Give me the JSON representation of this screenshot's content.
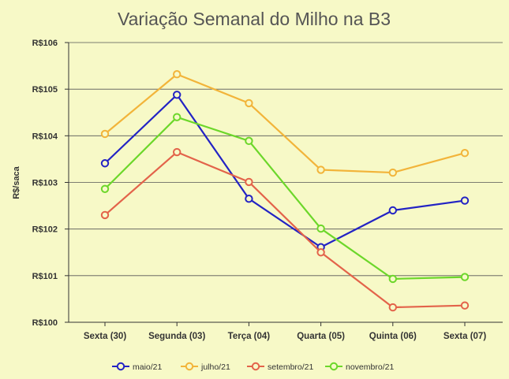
{
  "chart_data": {
    "type": "line",
    "title": "Variação Semanal do Milho na B3",
    "ylabel": "R$/saca",
    "xlabel": "",
    "categories": [
      "Sexta (30)",
      "Segunda (03)",
      "Terça (04)",
      "Quarta (05)",
      "Quinta (06)",
      "Sexta (07)"
    ],
    "ylim": [
      100,
      106
    ],
    "yticks": [
      100,
      101,
      102,
      103,
      104,
      105,
      106
    ],
    "ytick_labels": [
      "R$100",
      "R$101",
      "R$102",
      "R$103",
      "R$104",
      "R$105",
      "R$106"
    ],
    "grid": true,
    "legend_position": "bottom",
    "series": [
      {
        "name": "maio/21",
        "color": "#2323c4",
        "values": [
          103.41,
          104.88,
          102.65,
          101.61,
          102.4,
          102.61
        ]
      },
      {
        "name": "julho/21",
        "color": "#f2b43a",
        "values": [
          104.04,
          105.32,
          104.7,
          103.27,
          103.21,
          103.63
        ]
      },
      {
        "name": "setembro/21",
        "color": "#e3634a",
        "values": [
          102.3,
          103.65,
          103.01,
          101.5,
          100.32,
          100.36
        ]
      },
      {
        "name": "novembro/21",
        "color": "#6cd72a",
        "values": [
          102.86,
          104.4,
          103.89,
          102.01,
          100.93,
          100.97
        ]
      }
    ]
  }
}
